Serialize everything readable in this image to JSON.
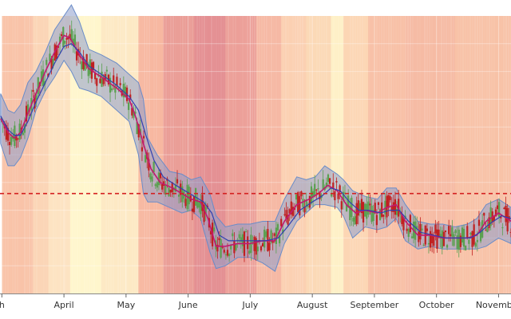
{
  "chart_data": {
    "type": "line",
    "title": "",
    "xlabel": "",
    "ylabel": "",
    "x_tick_labels": [
      {
        "label": "h",
        "x": 0.0
      },
      {
        "label": "April",
        "x": 1.0
      },
      {
        "label": "May",
        "x": 2.0
      },
      {
        "label": "June",
        "x": 3.0
      },
      {
        "label": "July",
        "x": 4.0
      },
      {
        "label": "August",
        "x": 5.0
      },
      {
        "label": "September",
        "x": 6.0
      },
      {
        "label": "October",
        "x": 7.0
      },
      {
        "label": "November",
        "x": 8.0
      }
    ],
    "xlim": [
      -0.03,
      8.2
    ],
    "ylim": [
      0,
      10
    ],
    "grid": true,
    "series": [
      {
        "style": "bollinger-band",
        "color": "#8c9ccc",
        "upper": [
          [
            -0.02,
            7.2
          ],
          [
            0.1,
            6.6
          ],
          [
            0.2,
            6.5
          ],
          [
            0.3,
            6.8
          ],
          [
            0.42,
            7.6
          ],
          [
            0.55,
            8.0
          ],
          [
            0.7,
            8.7
          ],
          [
            0.85,
            9.5
          ],
          [
            1.0,
            10.0
          ],
          [
            1.12,
            10.4
          ],
          [
            1.25,
            9.8
          ],
          [
            1.4,
            8.8
          ],
          [
            1.6,
            8.6
          ],
          [
            1.85,
            8.3
          ],
          [
            2.05,
            7.9
          ],
          [
            2.2,
            7.6
          ],
          [
            2.28,
            7.0
          ],
          [
            2.35,
            5.6
          ],
          [
            2.5,
            5.0
          ],
          [
            2.7,
            4.4
          ],
          [
            2.9,
            4.3
          ],
          [
            3.05,
            4.1
          ],
          [
            3.2,
            4.2
          ],
          [
            3.35,
            3.6
          ],
          [
            3.45,
            2.8
          ],
          [
            3.6,
            2.4
          ],
          [
            3.8,
            2.5
          ],
          [
            4.0,
            2.5
          ],
          [
            4.2,
            2.6
          ],
          [
            4.4,
            2.6
          ],
          [
            4.55,
            3.4
          ],
          [
            4.75,
            4.2
          ],
          [
            4.9,
            4.1
          ],
          [
            5.05,
            4.2
          ],
          [
            5.2,
            4.6
          ],
          [
            5.4,
            4.3
          ],
          [
            5.5,
            4.1
          ],
          [
            5.65,
            3.7
          ],
          [
            5.85,
            3.5
          ],
          [
            6.05,
            3.4
          ],
          [
            6.2,
            3.8
          ],
          [
            6.35,
            3.8
          ],
          [
            6.5,
            3.2
          ],
          [
            6.7,
            2.6
          ],
          [
            6.9,
            2.5
          ],
          [
            7.1,
            2.5
          ],
          [
            7.3,
            2.4
          ],
          [
            7.5,
            2.5
          ],
          [
            7.65,
            2.7
          ],
          [
            7.8,
            3.2
          ],
          [
            8.0,
            3.4
          ],
          [
            8.2,
            3.1
          ]
        ],
        "lower": [
          [
            -0.02,
            5.4
          ],
          [
            0.1,
            4.6
          ],
          [
            0.2,
            4.6
          ],
          [
            0.3,
            4.9
          ],
          [
            0.42,
            5.6
          ],
          [
            0.55,
            6.6
          ],
          [
            0.7,
            7.3
          ],
          [
            0.85,
            7.8
          ],
          [
            1.0,
            8.4
          ],
          [
            1.12,
            8.0
          ],
          [
            1.25,
            7.4
          ],
          [
            1.4,
            7.3
          ],
          [
            1.6,
            7.1
          ],
          [
            1.85,
            6.6
          ],
          [
            2.05,
            6.2
          ],
          [
            2.2,
            5.0
          ],
          [
            2.28,
            3.6
          ],
          [
            2.35,
            3.3
          ],
          [
            2.5,
            3.3
          ],
          [
            2.7,
            3.1
          ],
          [
            2.9,
            2.9
          ],
          [
            3.05,
            3.0
          ],
          [
            3.2,
            2.7
          ],
          [
            3.35,
            1.5
          ],
          [
            3.45,
            0.9
          ],
          [
            3.6,
            1.0
          ],
          [
            3.8,
            1.3
          ],
          [
            4.0,
            1.3
          ],
          [
            4.2,
            1.1
          ],
          [
            4.4,
            0.8
          ],
          [
            4.55,
            1.8
          ],
          [
            4.75,
            2.6
          ],
          [
            4.9,
            2.9
          ],
          [
            5.05,
            3.2
          ],
          [
            5.2,
            3.2
          ],
          [
            5.4,
            3.1
          ],
          [
            5.5,
            2.8
          ],
          [
            5.65,
            2.0
          ],
          [
            5.85,
            2.4
          ],
          [
            6.05,
            2.3
          ],
          [
            6.2,
            2.4
          ],
          [
            6.35,
            2.7
          ],
          [
            6.5,
            1.9
          ],
          [
            6.7,
            1.6
          ],
          [
            6.9,
            1.7
          ],
          [
            7.1,
            1.6
          ],
          [
            7.3,
            1.6
          ],
          [
            7.5,
            1.6
          ],
          [
            7.65,
            1.6
          ],
          [
            7.8,
            1.7
          ],
          [
            8.0,
            2.0
          ],
          [
            8.2,
            1.8
          ]
        ]
      },
      {
        "style": "line",
        "color": "#c01870",
        "values": [
          [
            -0.02,
            6.3
          ],
          [
            0.1,
            5.8
          ],
          [
            0.2,
            5.6
          ],
          [
            0.3,
            5.8
          ],
          [
            0.42,
            6.5
          ],
          [
            0.55,
            7.2
          ],
          [
            0.7,
            8.0
          ],
          [
            0.85,
            8.7
          ],
          [
            1.0,
            9.3
          ],
          [
            1.1,
            9.2
          ],
          [
            1.25,
            8.6
          ],
          [
            1.4,
            8.1
          ],
          [
            1.6,
            7.8
          ],
          [
            1.85,
            7.4
          ],
          [
            2.05,
            7.0
          ],
          [
            2.15,
            6.4
          ],
          [
            2.28,
            5.4
          ],
          [
            2.4,
            4.5
          ],
          [
            2.55,
            4.0
          ],
          [
            2.75,
            3.8
          ],
          [
            2.9,
            3.6
          ],
          [
            3.05,
            3.4
          ],
          [
            3.2,
            3.3
          ],
          [
            3.32,
            2.7
          ],
          [
            3.45,
            1.7
          ],
          [
            3.6,
            1.7
          ],
          [
            3.8,
            1.8
          ],
          [
            4.0,
            1.8
          ],
          [
            4.2,
            1.9
          ],
          [
            4.4,
            1.9
          ],
          [
            4.55,
            2.6
          ],
          [
            4.75,
            3.2
          ],
          [
            4.95,
            3.4
          ],
          [
            5.1,
            3.6
          ],
          [
            5.25,
            3.9
          ],
          [
            5.4,
            3.7
          ],
          [
            5.55,
            3.2
          ],
          [
            5.7,
            2.9
          ],
          [
            5.85,
            3.0
          ],
          [
            6.05,
            2.9
          ],
          [
            6.2,
            3.1
          ],
          [
            6.35,
            3.2
          ],
          [
            6.5,
            2.6
          ],
          [
            6.7,
            2.1
          ],
          [
            6.9,
            2.1
          ],
          [
            7.1,
            2.0
          ],
          [
            7.3,
            2.0
          ],
          [
            7.5,
            2.0
          ],
          [
            7.65,
            2.1
          ],
          [
            7.8,
            2.6
          ],
          [
            8.0,
            2.9
          ],
          [
            8.2,
            2.6
          ]
        ]
      },
      {
        "style": "line",
        "color": "#3040b0",
        "values": [
          [
            -0.02,
            6.4
          ],
          [
            0.1,
            5.9
          ],
          [
            0.2,
            5.7
          ],
          [
            0.3,
            5.7
          ],
          [
            0.42,
            6.2
          ],
          [
            0.55,
            6.9
          ],
          [
            0.7,
            7.6
          ],
          [
            0.85,
            8.3
          ],
          [
            1.0,
            8.9
          ],
          [
            1.12,
            9.0
          ],
          [
            1.25,
            8.7
          ],
          [
            1.4,
            8.2
          ],
          [
            1.6,
            7.9
          ],
          [
            1.85,
            7.5
          ],
          [
            2.05,
            7.1
          ],
          [
            2.2,
            6.6
          ],
          [
            2.32,
            5.7
          ],
          [
            2.45,
            4.8
          ],
          [
            2.6,
            4.2
          ],
          [
            2.8,
            3.9
          ],
          [
            2.95,
            3.7
          ],
          [
            3.1,
            3.5
          ],
          [
            3.25,
            3.3
          ],
          [
            3.38,
            2.9
          ],
          [
            3.5,
            2.1
          ],
          [
            3.65,
            1.9
          ],
          [
            3.85,
            1.9
          ],
          [
            4.05,
            1.9
          ],
          [
            4.25,
            1.9
          ],
          [
            4.45,
            2.0
          ],
          [
            4.6,
            2.4
          ],
          [
            4.8,
            3.0
          ],
          [
            5.0,
            3.3
          ],
          [
            5.15,
            3.5
          ],
          [
            5.3,
            3.8
          ],
          [
            5.45,
            3.7
          ],
          [
            5.6,
            3.3
          ],
          [
            5.75,
            3.0
          ],
          [
            5.9,
            3.0
          ],
          [
            6.1,
            2.9
          ],
          [
            6.25,
            3.0
          ],
          [
            6.4,
            3.0
          ],
          [
            6.55,
            2.6
          ],
          [
            6.75,
            2.2
          ],
          [
            6.95,
            2.1
          ],
          [
            7.15,
            2.0
          ],
          [
            7.35,
            2.0
          ],
          [
            7.55,
            2.0
          ],
          [
            7.7,
            2.2
          ],
          [
            7.85,
            2.5
          ],
          [
            8.05,
            2.8
          ],
          [
            8.2,
            2.7
          ]
        ]
      }
    ],
    "reference_lines": [
      {
        "orientation": "horizontal",
        "y": 3.6,
        "color": "#d42020",
        "style": "dashed"
      }
    ],
    "background": {
      "type": "heat-strip",
      "colors": [
        "#f9c3a8",
        "#fbd5b6",
        "#fde3c2",
        "#fff6cc",
        "#fde9c4",
        "#f7b7a0",
        "#ea9c95",
        "#e48f92",
        "#ec9f98",
        "#f6b8a3",
        "#fbd0b2",
        "#fbd9b6",
        "#fef0c6",
        "#fcd6b4",
        "#f8c0a6",
        "#f6bba4",
        "#f8c2a7",
        "#fad2b1"
      ],
      "stops": [
        0.0,
        0.5,
        0.75,
        1.1,
        1.6,
        2.2,
        2.6,
        3.1,
        3.6,
        4.1,
        4.5,
        4.9,
        5.3,
        5.5,
        5.9,
        6.5,
        7.3,
        8.2
      ]
    },
    "candles": {
      "up_color": "#5aa050",
      "down_color": "#c02020"
    }
  }
}
